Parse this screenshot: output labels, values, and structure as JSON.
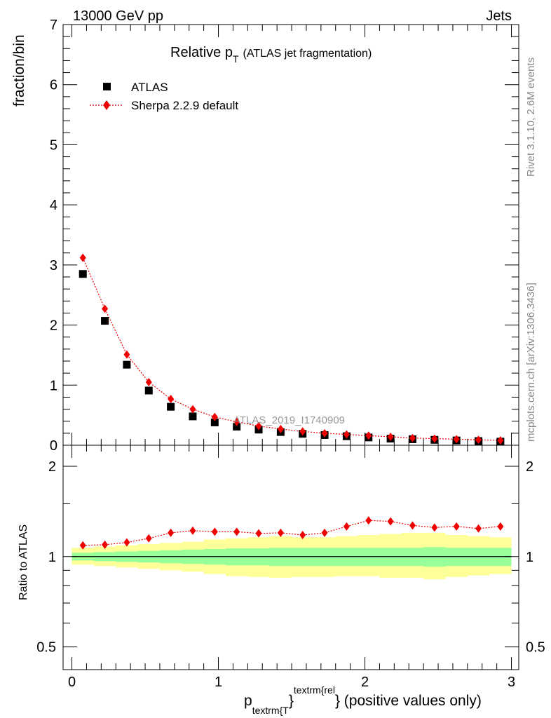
{
  "header": {
    "beam": "13000 GeV pp",
    "process": "Jets"
  },
  "side_labels": {
    "rivet": "Rivet 3.1.10,  2.6M events",
    "mcplots": "mcplots.cern.ch [arXiv:1306.3436]"
  },
  "watermark": "ATLAS_2019_I1740909",
  "chart_data": [
    {
      "type": "scatter",
      "title": "Relative p_T (ATLAS jet fragmentation)",
      "title_main": "Relative p",
      "title_sub": "T",
      "title_detail": "(ATLAS jet fragmentation)",
      "ylabel": "fraction/bin",
      "xlim": [
        -0.06,
        3.05
      ],
      "ylim": [
        0,
        7
      ],
      "y_ticks": [
        0,
        1,
        2,
        3,
        4,
        5,
        6,
        7
      ],
      "legend_position": "top-left",
      "x": [
        0.075,
        0.225,
        0.375,
        0.525,
        0.675,
        0.825,
        0.975,
        1.125,
        1.275,
        1.425,
        1.575,
        1.725,
        1.875,
        2.025,
        2.175,
        2.325,
        2.475,
        2.625,
        2.775,
        2.925
      ],
      "series": [
        {
          "name": "ATLAS",
          "marker": "square",
          "color": "#000000",
          "values": [
            2.85,
            2.07,
            1.34,
            0.91,
            0.64,
            0.48,
            0.38,
            0.31,
            0.26,
            0.22,
            0.19,
            0.17,
            0.15,
            0.13,
            0.11,
            0.1,
            0.09,
            0.08,
            0.07,
            0.06
          ]
        },
        {
          "name": "Sherpa 2.2.9 default",
          "marker": "diamond",
          "line": "dotted",
          "color": "#ee0000",
          "values": [
            3.12,
            2.27,
            1.51,
            1.05,
            0.77,
            0.6,
            0.47,
            0.39,
            0.32,
            0.27,
            0.23,
            0.2,
            0.18,
            0.16,
            0.14,
            0.12,
            0.11,
            0.1,
            0.09,
            0.08
          ]
        }
      ]
    },
    {
      "type": "scatter",
      "ylabel": "Ratio to ATLAS",
      "xlabel_main": "p",
      "xlabel_sub": "textrm{T",
      "xlabel_sup": "textrm{rel",
      "xlabel_close": "}",
      "xlabel_tail": "} (positive values only)",
      "xlim": [
        -0.06,
        3.05
      ],
      "ylim": [
        0.42,
        2.35
      ],
      "log_y": true,
      "y_ticks": [
        0.5,
        1,
        2
      ],
      "y_tick_labels": [
        "0.5",
        "1",
        "2"
      ],
      "x_ticks": [
        0,
        1,
        2,
        3
      ],
      "x_tick_labels": [
        "0",
        "1",
        "2",
        "3"
      ],
      "x": [
        0.075,
        0.225,
        0.375,
        0.525,
        0.675,
        0.825,
        0.975,
        1.125,
        1.275,
        1.425,
        1.575,
        1.725,
        1.875,
        2.025,
        2.175,
        2.325,
        2.475,
        2.625,
        2.775,
        2.925
      ],
      "bin_edges": [
        0.0,
        0.15,
        0.3,
        0.45,
        0.6,
        0.75,
        0.9,
        1.05,
        1.2,
        1.35,
        1.5,
        1.65,
        1.8,
        1.95,
        2.1,
        2.25,
        2.4,
        2.55,
        2.7,
        2.85,
        3.0
      ],
      "series": [
        {
          "name": "Sherpa 2.2.9 default",
          "marker": "diamond",
          "color": "#ee0000",
          "values": [
            1.09,
            1.095,
            1.115,
            1.15,
            1.2,
            1.22,
            1.21,
            1.21,
            1.195,
            1.2,
            1.18,
            1.2,
            1.26,
            1.32,
            1.31,
            1.27,
            1.25,
            1.26,
            1.24,
            1.26
          ]
        }
      ],
      "bands": [
        {
          "name": "stat-band",
          "color": "#99ff99",
          "up": [
            1.03,
            1.035,
            1.04,
            1.045,
            1.05,
            1.055,
            1.06,
            1.065,
            1.065,
            1.07,
            1.07,
            1.07,
            1.07,
            1.07,
            1.07,
            1.07,
            1.075,
            1.07,
            1.07,
            1.07
          ],
          "down": [
            0.97,
            0.965,
            0.96,
            0.955,
            0.95,
            0.945,
            0.94,
            0.935,
            0.935,
            0.93,
            0.93,
            0.93,
            0.93,
            0.93,
            0.93,
            0.93,
            0.925,
            0.93,
            0.93,
            0.93
          ]
        },
        {
          "name": "total-band",
          "color": "#ffff99",
          "up": [
            1.07,
            1.08,
            1.09,
            1.1,
            1.11,
            1.12,
            1.14,
            1.15,
            1.16,
            1.17,
            1.16,
            1.16,
            1.17,
            1.18,
            1.19,
            1.2,
            1.2,
            1.18,
            1.17,
            1.16
          ],
          "down": [
            0.94,
            0.93,
            0.92,
            0.91,
            0.9,
            0.89,
            0.875,
            0.86,
            0.855,
            0.85,
            0.855,
            0.855,
            0.86,
            0.86,
            0.85,
            0.85,
            0.84,
            0.855,
            0.865,
            0.875
          ]
        }
      ]
    }
  ]
}
